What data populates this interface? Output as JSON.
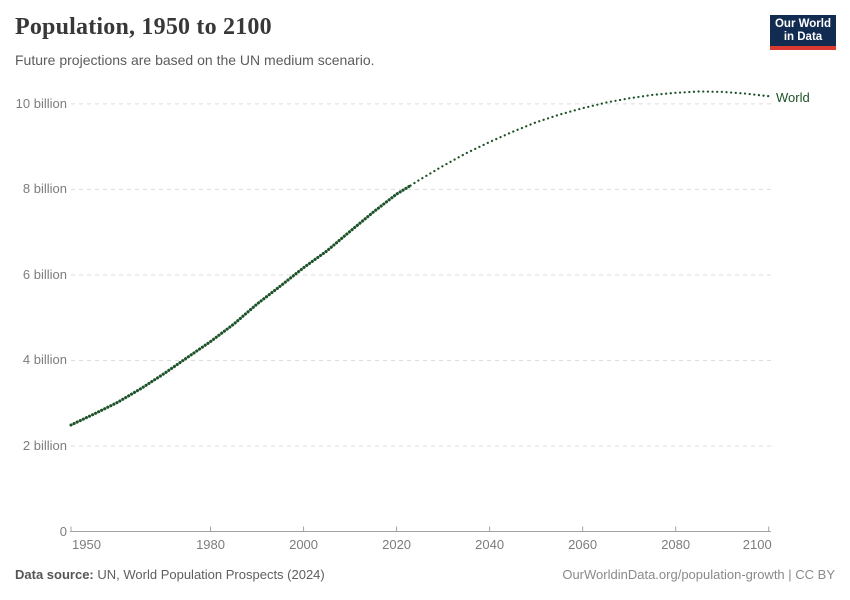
{
  "header": {
    "title": "Population, 1950 to 2100",
    "subtitle": "Future projections are based on the UN medium scenario.",
    "logo": {
      "line1": "Our World",
      "line2": "in Data",
      "bg_color": "#122B50",
      "accent_color": "#DC3A30"
    }
  },
  "chart_data": {
    "type": "line",
    "title": "Population, 1950 to 2100",
    "entity": "World",
    "annotation_label": "World",
    "line_color": "#1C5227",
    "grid": true,
    "legend_position": "right-of-line-end",
    "xlim": [
      1950,
      2100
    ],
    "ylim": [
      0,
      10.45
    ],
    "x_ticks": [
      1950,
      1980,
      2000,
      2020,
      2040,
      2060,
      2080,
      2100
    ],
    "y_ticks": [
      {
        "value": 0,
        "label": "0"
      },
      {
        "value": 2,
        "label": "2 billion"
      },
      {
        "value": 4,
        "label": "4 billion"
      },
      {
        "value": 6,
        "label": "6 billion"
      },
      {
        "value": 8,
        "label": "8 billion"
      },
      {
        "value": 10,
        "label": "10 billion"
      }
    ],
    "series": [
      {
        "name": "World (observed)",
        "style": "solid",
        "x": [
          1950,
          1955,
          1960,
          1965,
          1970,
          1975,
          1980,
          1985,
          1990,
          1995,
          2000,
          2005,
          2010,
          2015,
          2020,
          2023
        ],
        "values": [
          2.49,
          2.75,
          3.02,
          3.34,
          3.69,
          4.07,
          4.44,
          4.85,
          5.32,
          5.74,
          6.17,
          6.56,
          7.02,
          7.47,
          7.89,
          8.09
        ]
      },
      {
        "name": "World (UN medium projection)",
        "style": "dotted",
        "x": [
          2023,
          2025,
          2030,
          2035,
          2040,
          2045,
          2050,
          2055,
          2060,
          2065,
          2070,
          2075,
          2080,
          2085,
          2090,
          2095,
          2100
        ],
        "values": [
          8.09,
          8.23,
          8.55,
          8.85,
          9.11,
          9.35,
          9.57,
          9.75,
          9.9,
          10.03,
          10.13,
          10.21,
          10.26,
          10.29,
          10.28,
          10.24,
          10.18
        ]
      }
    ]
  },
  "footer": {
    "source_label": "Data source:",
    "source_text": "UN, World Population Prospects (2024)",
    "credit": "OurWorldinData.org/population-growth | CC BY"
  }
}
